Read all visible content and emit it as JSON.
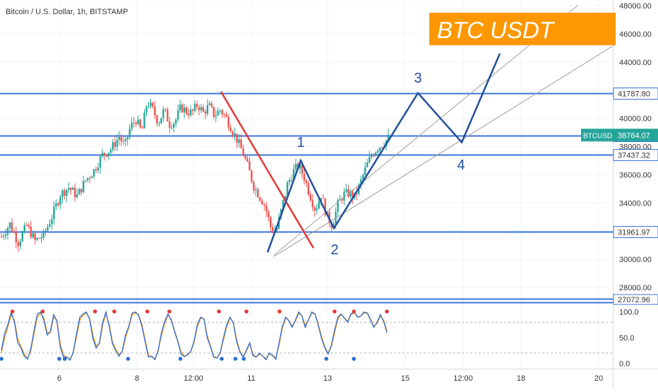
{
  "header": {
    "symbol_title": "Bitcoin / U.S. Dollar, 1h, BITSTAMP"
  },
  "banner": {
    "text": "BTC USDT",
    "bg_color": "#ff9800",
    "text_color": "#ffffff"
  },
  "colors": {
    "up": "#26a69a",
    "down": "#ef5350",
    "hline": "#3b74d8",
    "wave": "#234f9c",
    "downtrend": "#e53935",
    "channel": "#9e9e9e",
    "stoch_k": "#2b6cd6",
    "stoch_d": "#ff9800",
    "dot_red": "#e53935",
    "dot_blue": "#2b6cd6",
    "price_tag": "#26a69a"
  },
  "chart_data": [
    {
      "type": "candlestick",
      "title": "Bitcoin / U.S. Dollar, 1h, BITSTAMP",
      "ylim": [
        27000,
        48500
      ],
      "x_tick_labels": [
        "6",
        "8",
        "12:00",
        "11",
        "13",
        "15",
        "12:00",
        "18",
        "20"
      ],
      "y_ticks": [
        28000,
        30000,
        32000,
        34000,
        36000,
        38000,
        40000,
        42000,
        44000,
        46000,
        48000
      ],
      "y_tick_labels": [
        "28000.00",
        "30000.00",
        "32000.00",
        "34000.00",
        "36000.00",
        "38000.00",
        "40000.00",
        "42000.00",
        "44000.00",
        "46000.00",
        "48000.00"
      ],
      "horizontal_levels": [
        {
          "value": 41787.8,
          "label": "41787.80"
        },
        {
          "value": 38764.07,
          "label": "38764.07"
        },
        {
          "value": 37437.32,
          "label": "37437.32"
        },
        {
          "value": 31961.97,
          "label": "31961.97"
        },
        {
          "value": 27072.96,
          "label": "27072.96"
        }
      ],
      "current_price": {
        "symbol": "BTCUSD",
        "value": 38764.07
      },
      "price_path": [
        {
          "x": 0,
          "y": 31600
        },
        {
          "x": 3,
          "y": 32500
        },
        {
          "x": 6,
          "y": 31200
        },
        {
          "x": 9,
          "y": 32400
        },
        {
          "x": 12,
          "y": 31300
        },
        {
          "x": 15,
          "y": 31700
        },
        {
          "x": 18,
          "y": 33000
        },
        {
          "x": 21,
          "y": 34600
        },
        {
          "x": 24,
          "y": 35100
        },
        {
          "x": 27,
          "y": 34500
        },
        {
          "x": 30,
          "y": 35600
        },
        {
          "x": 33,
          "y": 36300
        },
        {
          "x": 36,
          "y": 37400
        },
        {
          "x": 39,
          "y": 37800
        },
        {
          "x": 42,
          "y": 38700
        },
        {
          "x": 44,
          "y": 38000
        },
        {
          "x": 46,
          "y": 39400
        },
        {
          "x": 48,
          "y": 39900
        },
        {
          "x": 50,
          "y": 39000
        },
        {
          "x": 52,
          "y": 41200
        },
        {
          "x": 54,
          "y": 40600
        },
        {
          "x": 56,
          "y": 39700
        },
        {
          "x": 58,
          "y": 40600
        },
        {
          "x": 60,
          "y": 39600
        },
        {
          "x": 62,
          "y": 39800
        },
        {
          "x": 64,
          "y": 40800
        },
        {
          "x": 66,
          "y": 40500
        },
        {
          "x": 68,
          "y": 40400
        },
        {
          "x": 70,
          "y": 41000
        },
        {
          "x": 72,
          "y": 40400
        },
        {
          "x": 74,
          "y": 40900
        },
        {
          "x": 76,
          "y": 40200
        },
        {
          "x": 78,
          "y": 40600
        },
        {
          "x": 80,
          "y": 40100
        },
        {
          "x": 82,
          "y": 39300
        },
        {
          "x": 84,
          "y": 38500
        },
        {
          "x": 86,
          "y": 37600
        },
        {
          "x": 88,
          "y": 36500
        },
        {
          "x": 90,
          "y": 35200
        },
        {
          "x": 92,
          "y": 34500
        },
        {
          "x": 94,
          "y": 33800
        },
        {
          "x": 96,
          "y": 32300
        },
        {
          "x": 98,
          "y": 32000
        },
        {
          "x": 100,
          "y": 33600
        },
        {
          "x": 102,
          "y": 35300
        },
        {
          "x": 104,
          "y": 36200
        },
        {
          "x": 106,
          "y": 36700
        },
        {
          "x": 108,
          "y": 35800
        },
        {
          "x": 110,
          "y": 34600
        },
        {
          "x": 112,
          "y": 33500
        },
        {
          "x": 114,
          "y": 34600
        },
        {
          "x": 116,
          "y": 33100
        },
        {
          "x": 118,
          "y": 32400
        },
        {
          "x": 120,
          "y": 33900
        },
        {
          "x": 122,
          "y": 34600
        },
        {
          "x": 124,
          "y": 34700
        },
        {
          "x": 126,
          "y": 34400
        },
        {
          "x": 128,
          "y": 35400
        },
        {
          "x": 130,
          "y": 36500
        },
        {
          "x": 132,
          "y": 37400
        },
        {
          "x": 134,
          "y": 37900
        },
        {
          "x": 136,
          "y": 38200
        },
        {
          "x": 138,
          "y": 38600
        }
      ],
      "projection_path": [
        {
          "t": 0,
          "y": 30500
        },
        {
          "t": 1,
          "y": 37000
        },
        {
          "t": 2,
          "y": 32200
        },
        {
          "t": 3,
          "y": 41800
        },
        {
          "t": 4,
          "y": 38300
        },
        {
          "t": 5,
          "y": 44600
        }
      ],
      "wave_labels": [
        "1",
        "2",
        "3",
        "4"
      ],
      "downtrend_line": [
        {
          "t": 0,
          "y": 41900
        },
        {
          "t": 1,
          "y": 30800
        }
      ],
      "channel_lines": [
        [
          {
            "t": 0,
            "y": 30300
          },
          {
            "t": 1,
            "y": 48000
          }
        ],
        [
          {
            "t": 0,
            "y": 30200
          },
          {
            "t": 1,
            "y": 45200
          }
        ]
      ]
    },
    {
      "type": "line",
      "name": "stochastic",
      "ylim": [
        -5,
        112
      ],
      "y_ticks": [
        0,
        50,
        100
      ],
      "y_tick_labels": [
        "0.0",
        "50.0",
        "100.0"
      ],
      "series_k": [
        25,
        58,
        76,
        100,
        80,
        40,
        30,
        14,
        8,
        28,
        64,
        96,
        100,
        84,
        55,
        62,
        95,
        82,
        32,
        12,
        12,
        6,
        22,
        58,
        90,
        96,
        100,
        86,
        48,
        30,
        40,
        80,
        100,
        72,
        38,
        25,
        14,
        24,
        55,
        72,
        98,
        100,
        94,
        72,
        42,
        12,
        14,
        7,
        26,
        60,
        82,
        96,
        84,
        62,
        42,
        18,
        13,
        17,
        24,
        44,
        76,
        90,
        86,
        50,
        32,
        12,
        10,
        22,
        50,
        76,
        90,
        78,
        42,
        22,
        12,
        26,
        40,
        15,
        12,
        20,
        14,
        7,
        20,
        15,
        8,
        40,
        72,
        90,
        83,
        70,
        84,
        100,
        92,
        70,
        85,
        100,
        96,
        74,
        48,
        30,
        18,
        35,
        65,
        90,
        96,
        88,
        80,
        96,
        100,
        90,
        92,
        100,
        98,
        84,
        70,
        80,
        95,
        82,
        60
      ],
      "series_d": [
        20,
        50,
        72,
        95,
        84,
        48,
        32,
        18,
        10,
        24,
        58,
        90,
        98,
        88,
        60,
        60,
        90,
        84,
        38,
        16,
        12,
        8,
        20,
        52,
        84,
        94,
        98,
        88,
        55,
        34,
        38,
        74,
        96,
        76,
        42,
        28,
        16,
        22,
        50,
        70,
        94,
        98,
        95,
        76,
        46,
        16,
        13,
        9,
        24,
        55,
        78,
        94,
        86,
        64,
        44,
        22,
        14,
        16,
        23,
        42,
        72,
        88,
        87,
        54,
        34,
        14,
        10,
        20,
        46,
        72,
        88,
        80,
        46,
        24,
        13,
        24,
        38,
        18,
        12,
        18,
        14,
        9,
        18,
        16,
        10,
        36,
        68,
        88,
        84,
        72,
        82,
        97,
        93,
        74,
        84,
        98,
        96,
        77,
        52,
        32,
        20,
        32,
        60,
        86,
        95,
        89,
        82,
        94,
        99,
        91,
        92,
        98,
        98,
        86,
        72,
        78,
        92,
        84,
        64
      ],
      "dots_top": [
        4,
        15,
        34,
        41,
        53,
        61,
        79,
        89,
        101,
        121,
        128,
        140
      ],
      "dots_bottom": [
        0,
        21,
        23,
        46,
        65,
        80,
        85,
        88,
        118,
        128
      ]
    }
  ]
}
